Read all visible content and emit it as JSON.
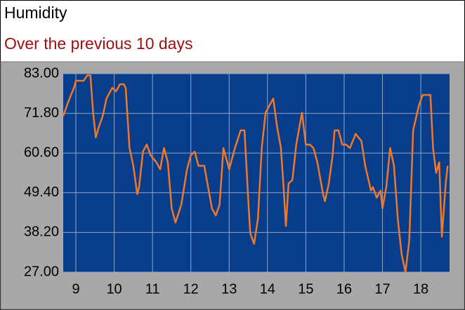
{
  "chart_data": {
    "type": "line",
    "title": "Humidity",
    "subtitle": "Over the previous 10 days",
    "x": [
      8.67,
      8.8,
      8.95,
      9.0,
      9.2,
      9.3,
      9.38,
      9.45,
      9.52,
      9.6,
      9.7,
      9.8,
      9.95,
      10.05,
      10.15,
      10.25,
      10.3,
      10.4,
      10.5,
      10.6,
      10.65,
      10.75,
      10.85,
      10.95,
      11.1,
      11.2,
      11.3,
      11.4,
      11.5,
      11.6,
      11.75,
      11.9,
      12.0,
      12.1,
      12.2,
      12.35,
      12.45,
      12.55,
      12.65,
      12.75,
      12.85,
      12.95,
      13.0,
      13.15,
      13.3,
      13.4,
      13.5,
      13.55,
      13.65,
      13.75,
      13.85,
      13.95,
      14.1,
      14.15,
      14.25,
      14.35,
      14.42,
      14.48,
      14.55,
      14.65,
      14.75,
      14.9,
      15.0,
      15.1,
      15.2,
      15.3,
      15.45,
      15.5,
      15.6,
      15.7,
      15.75,
      15.85,
      15.95,
      16.05,
      16.15,
      16.3,
      16.45,
      16.55,
      16.7,
      16.75,
      16.85,
      16.95,
      17.0,
      17.1,
      17.2,
      17.3,
      17.4,
      17.5,
      17.6,
      17.7,
      17.8,
      17.95,
      18.05,
      18.15,
      18.25,
      18.32,
      18.4,
      18.48,
      18.55,
      18.65,
      18.7
    ],
    "series": [
      {
        "color": "#f07828",
        "values": [
          71,
          75,
          79,
          81,
          81,
          82.5,
          82.5,
          72,
          65,
          68,
          71,
          76,
          79,
          78,
          80,
          80,
          79,
          62,
          57,
          49,
          51,
          61,
          63,
          60,
          58,
          56,
          62,
          58,
          45,
          41,
          46,
          56,
          60,
          61,
          57,
          57,
          51,
          45,
          43,
          46,
          62,
          58,
          56,
          62,
          67,
          67,
          47,
          38,
          35,
          42,
          62,
          72,
          75,
          76,
          68,
          62,
          51,
          40,
          52,
          53,
          63,
          72,
          63,
          63,
          62,
          58,
          49,
          47,
          52,
          60,
          67,
          67,
          63,
          63,
          62,
          66,
          64,
          57,
          50,
          51,
          48,
          50,
          45,
          51,
          62,
          57,
          42,
          32,
          27,
          36,
          67,
          74,
          77,
          77,
          77,
          62,
          55,
          58,
          37,
          52,
          57
        ]
      }
    ],
    "xlim": [
      8.67,
      18.75
    ],
    "xticks": [
      9,
      10,
      11,
      12,
      13,
      14,
      15,
      16,
      17,
      18
    ],
    "ylim": [
      27,
      83
    ],
    "yticks": [
      {
        "value": 27,
        "label": "27.00"
      },
      {
        "value": 38.2,
        "label": "38.20"
      },
      {
        "value": 49.4,
        "label": "49.40"
      },
      {
        "value": 60.6,
        "label": "60.60"
      },
      {
        "value": 71.8,
        "label": "71.80"
      },
      {
        "value": 83,
        "label": "83.00"
      }
    ],
    "grid": true
  }
}
